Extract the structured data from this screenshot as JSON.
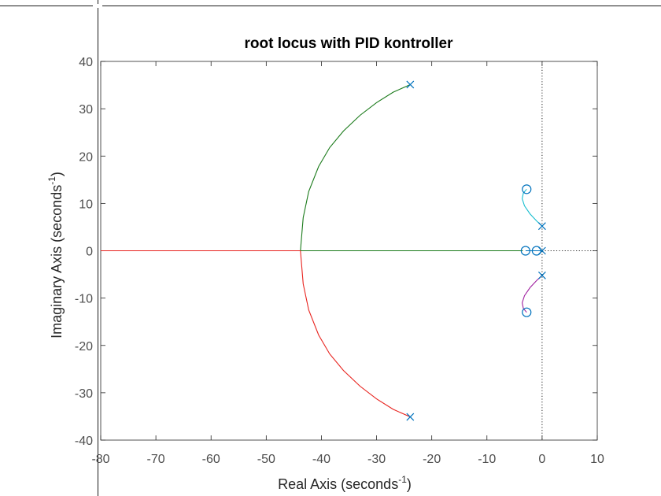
{
  "chart_data": {
    "type": "line",
    "title": "root locus with PID kontroller",
    "xlabel": "Real Axis (seconds",
    "xlabel_sup": "-1",
    "xlabel_end": ")",
    "ylabel": "Imaginary Axis (seconds",
    "ylabel_sup": "-1",
    "ylabel_end": ")",
    "xlim": [
      -80,
      10
    ],
    "ylim": [
      -40,
      40
    ],
    "xticks": [
      -80,
      -70,
      -60,
      -50,
      -40,
      -30,
      -20,
      -10,
      0,
      10
    ],
    "yticks": [
      -40,
      -30,
      -20,
      -10,
      0,
      10,
      20,
      30,
      40
    ],
    "grid": false,
    "colors": {
      "upper_branch": "#1a7a1a",
      "lower_branch": "#e8231e",
      "upper_small": "#17becf",
      "lower_small": "#a020a0",
      "markers": "#0072bd",
      "axis": "#262626"
    },
    "series": [
      {
        "color_key": "upper_branch",
        "points": [
          [
            -23.9,
            35.1
          ],
          [
            -27,
            33.5
          ],
          [
            -30,
            31.3
          ],
          [
            -33,
            28.6
          ],
          [
            -36,
            25.3
          ],
          [
            -38.5,
            21.8
          ],
          [
            -40.5,
            17.8
          ],
          [
            -42.3,
            12.5
          ],
          [
            -43.3,
            7
          ],
          [
            -43.8,
            0
          ]
        ]
      },
      {
        "color_key": "upper_branch",
        "points": [
          [
            -43.8,
            0
          ],
          [
            -30,
            0
          ],
          [
            -20,
            0
          ],
          [
            -10,
            0
          ],
          [
            -3.5,
            0
          ]
        ]
      },
      {
        "color_key": "lower_branch",
        "points": [
          [
            -23.9,
            -35.1
          ],
          [
            -27,
            -33.5
          ],
          [
            -30,
            -31.3
          ],
          [
            -33,
            -28.6
          ],
          [
            -36,
            -25.3
          ],
          [
            -38.5,
            -21.8
          ],
          [
            -40.5,
            -17.8
          ],
          [
            -42.3,
            -12.5
          ],
          [
            -43.3,
            -7
          ],
          [
            -43.8,
            0
          ]
        ]
      },
      {
        "color_key": "lower_branch",
        "points": [
          [
            -43.8,
            0
          ],
          [
            -55,
            0
          ],
          [
            -65,
            0
          ],
          [
            -80,
            0
          ]
        ]
      },
      {
        "color_key": "upper_small",
        "points": [
          [
            0,
            5.2
          ],
          [
            -1,
            6.3
          ],
          [
            -2.2,
            7.8
          ],
          [
            -3.2,
            9.5
          ],
          [
            -3.6,
            11
          ],
          [
            -3.4,
            12.2
          ],
          [
            -2.8,
            13
          ]
        ]
      },
      {
        "color_key": "lower_small",
        "points": [
          [
            0,
            -5.2
          ],
          [
            -1,
            -6.3
          ],
          [
            -2.2,
            -7.8
          ],
          [
            -3.2,
            -9.5
          ],
          [
            -3.6,
            -11
          ],
          [
            -3.4,
            -12.2
          ],
          [
            -2.8,
            -13
          ]
        ]
      },
      {
        "color_key": "markers",
        "points": [
          [
            -3,
            0
          ],
          [
            -1,
            0
          ],
          [
            0,
            0
          ]
        ]
      }
    ],
    "poles": [
      [
        -23.9,
        35.1
      ],
      [
        -23.9,
        -35.1
      ],
      [
        0,
        5.2
      ],
      [
        0,
        -5.2
      ],
      [
        0,
        0
      ]
    ],
    "zeros": [
      [
        -2.8,
        13
      ],
      [
        -2.8,
        -13
      ],
      [
        -3,
        0
      ],
      [
        -1,
        0
      ]
    ]
  }
}
